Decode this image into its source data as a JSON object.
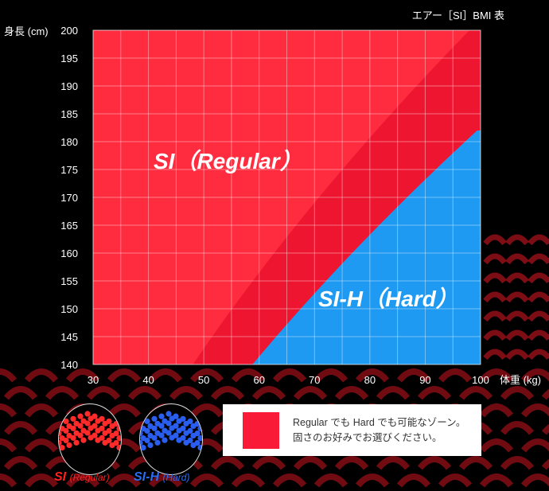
{
  "title": "エアー［SI］BMI 表",
  "chart_data": {
    "type": "area",
    "title": "エアー［SI］BMI 表",
    "xlabel": "体重 (kg)",
    "ylabel": "身長 (cm)",
    "xlim": [
      30,
      100
    ],
    "ylim": [
      140,
      200
    ],
    "x_ticks": [
      "30",
      "40",
      "50",
      "60",
      "70",
      "80",
      "90",
      "100"
    ],
    "y_ticks": [
      "140",
      "145",
      "150",
      "155",
      "160",
      "165",
      "170",
      "175",
      "180",
      "185",
      "190",
      "195",
      "200"
    ],
    "grid": true,
    "zones": [
      {
        "name": "SI (Regular)",
        "color": "#ff2b3e",
        "bmi_max": 24.5
      },
      {
        "name": "Regular / Hard overlap",
        "color": "#ee1530",
        "bmi_min": 24.5,
        "bmi_max": 30
      },
      {
        "name": "SI-H (Hard)",
        "color": "#1e9af2",
        "bmi_min": 30
      }
    ],
    "boundaries": [
      {
        "points": [
          [
            48.4,
            140
          ],
          [
            60,
            155.6
          ],
          [
            70,
            169
          ],
          [
            80,
            180.7
          ],
          [
            95.8,
            200
          ]
        ]
      },
      {
        "points": [
          [
            60,
            140
          ],
          [
            70,
            152.8
          ],
          [
            80,
            163.3
          ],
          [
            90,
            173.2
          ],
          [
            100,
            182.6
          ]
        ]
      }
    ],
    "annotations": {
      "regular": "SI（Regular）",
      "hard": "SI-H（Hard）"
    }
  },
  "legend": {
    "line1": "Regular でも Hard でも可能なゾーン。",
    "line2": "固さのお好みでお選びください。",
    "swatch_color": "#f81a36"
  },
  "products": [
    {
      "name": "SI",
      "sub": "(Regular)",
      "color": "#ff2020"
    },
    {
      "name": "SI-H",
      "sub": "(Hard)",
      "color": "#2a6df0"
    }
  ]
}
